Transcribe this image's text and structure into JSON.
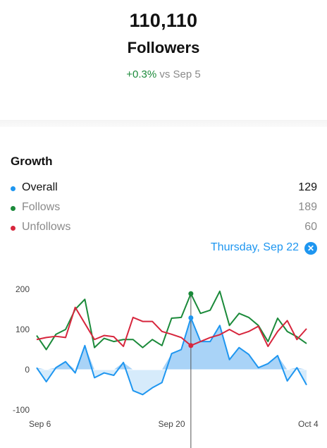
{
  "summary": {
    "count": "110,110",
    "count_label": "Followers",
    "change_value": "+0.3%",
    "change_ref": "vs Sep 5"
  },
  "growth": {
    "title": "Growth",
    "legend": [
      {
        "label": "Overall",
        "value": "129",
        "color": "#1e96f0"
      },
      {
        "label": "Follows",
        "value": "189",
        "color": "#1b8a3a"
      },
      {
        "label": "Unfollows",
        "value": "60",
        "color": "#d7263d"
      }
    ],
    "selected_date": "Thursday, Sep 22",
    "close_icon": "close-circle-icon"
  },
  "chart_data": {
    "type": "line",
    "x": [
      "Sep 6",
      "Sep 7",
      "Sep 8",
      "Sep 9",
      "Sep 10",
      "Sep 11",
      "Sep 12",
      "Sep 13",
      "Sep 14",
      "Sep 15",
      "Sep 16",
      "Sep 17",
      "Sep 18",
      "Sep 19",
      "Sep 20",
      "Sep 21",
      "Sep 22",
      "Sep 23",
      "Sep 24",
      "Sep 25",
      "Sep 26",
      "Sep 27",
      "Sep 28",
      "Sep 29",
      "Sep 30",
      "Oct 1",
      "Oct 2",
      "Oct 3",
      "Oct 4"
    ],
    "x_tick_labels": [
      "Sep 6",
      "Sep 20",
      "Oct 4"
    ],
    "y_ticks": [
      200,
      100,
      0,
      -100
    ],
    "ylim": [
      -100,
      200
    ],
    "series": [
      {
        "name": "Overall",
        "color": "#1e96f0",
        "values": [
          5,
          -30,
          5,
          20,
          -8,
          60,
          -20,
          -8,
          -14,
          18,
          -52,
          -62,
          -45,
          -32,
          40,
          50,
          129,
          70,
          70,
          110,
          25,
          55,
          38,
          5,
          15,
          35,
          -28,
          5,
          -38
        ]
      },
      {
        "name": "Follows",
        "color": "#1b8a3a",
        "values": [
          85,
          50,
          88,
          100,
          150,
          175,
          55,
          78,
          70,
          75,
          75,
          55,
          75,
          60,
          128,
          130,
          189,
          140,
          148,
          195,
          110,
          140,
          130,
          110,
          70,
          128,
          95,
          82,
          65
        ]
      },
      {
        "name": "Unfollows",
        "color": "#d7263d",
        "values": [
          75,
          80,
          83,
          80,
          155,
          115,
          75,
          85,
          82,
          58,
          130,
          120,
          120,
          95,
          88,
          80,
          60,
          70,
          80,
          87,
          100,
          87,
          95,
          108,
          58,
          95,
          122,
          75,
          102
        ]
      }
    ],
    "selected_index": 16,
    "grid": false,
    "legend": "none"
  }
}
